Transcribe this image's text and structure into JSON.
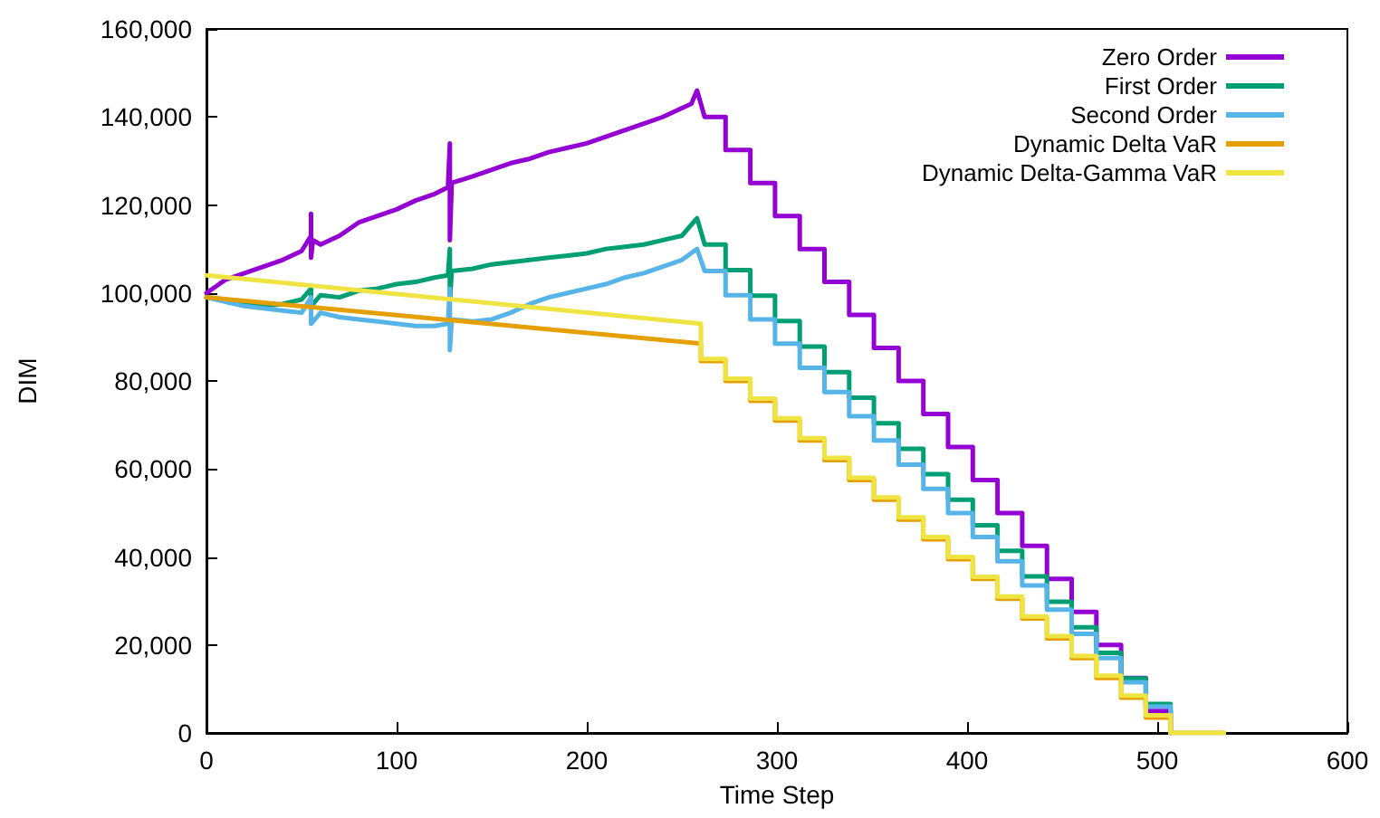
{
  "chart_data": {
    "type": "line",
    "xlabel": "Time Step",
    "ylabel": "DIM",
    "xlim": [
      0,
      600
    ],
    "xticks": [
      0,
      100,
      200,
      300,
      400,
      500,
      600
    ],
    "ylim": [
      0,
      160000
    ],
    "yticks": [
      {
        "value": 0,
        "label": "0"
      },
      {
        "value": 20000,
        "label": "20,000"
      },
      {
        "value": 40000,
        "label": "40,000"
      },
      {
        "value": 60000,
        "label": "60,000"
      },
      {
        "value": 80000,
        "label": "80,000"
      },
      {
        "value": 100000,
        "label": "100,000"
      },
      {
        "value": 120000,
        "label": "120,000"
      },
      {
        "value": 140000,
        "label": "140,000"
      },
      {
        "value": 160000,
        "label": "160,000"
      }
    ],
    "grid": false,
    "legend": "top right",
    "marker": "none",
    "line_style": "solid",
    "series": [
      {
        "name": "Zero Order",
        "color": "#9400d3",
        "x": [
          0,
          5,
          10,
          20,
          30,
          40,
          50,
          55,
          55,
          55,
          56,
          60,
          70,
          80,
          90,
          100,
          110,
          120,
          127,
          128,
          128,
          129,
          140,
          150,
          160,
          170,
          180,
          190,
          200,
          210,
          220,
          230,
          240,
          250,
          255,
          258,
          262,
          273,
          273,
          286,
          286,
          299,
          299,
          312,
          312,
          325,
          325,
          338,
          338,
          351,
          351,
          364,
          364,
          377,
          377,
          390,
          390,
          403,
          403,
          416,
          416,
          429,
          429,
          442,
          442,
          455,
          455,
          468,
          468,
          481,
          481,
          494,
          494,
          507,
          507
        ],
        "values": [
          100000,
          101500,
          103000,
          104500,
          106000,
          107500,
          109500,
          113000,
          118000,
          108000,
          112000,
          111000,
          113000,
          116000,
          117500,
          119000,
          121000,
          122500,
          124000,
          134000,
          112000,
          125000,
          126500,
          128000,
          129500,
          130500,
          132000,
          133000,
          134000,
          135500,
          137000,
          138500,
          140000,
          142000,
          143000,
          146000,
          140000,
          140000,
          132500,
          132500,
          125000,
          125000,
          117500,
          117500,
          110000,
          110000,
          102500,
          102500,
          95000,
          95000,
          87500,
          87500,
          80000,
          80000,
          72500,
          72500,
          65000,
          65000,
          57500,
          57500,
          50000,
          50000,
          42500,
          42500,
          35000,
          35000,
          27500,
          27500,
          20000,
          20000,
          12500,
          12500,
          5000,
          5000,
          0
        ]
      },
      {
        "name": "First Order",
        "color": "#009e73",
        "x": [
          0,
          10,
          20,
          30,
          40,
          50,
          55,
          55,
          60,
          70,
          80,
          90,
          100,
          110,
          120,
          127,
          128,
          128,
          129,
          140,
          150,
          160,
          170,
          180,
          190,
          200,
          210,
          220,
          230,
          240,
          250,
          258,
          262,
          273,
          273,
          286,
          286,
          299,
          299,
          312,
          312,
          325,
          325,
          338,
          338,
          351,
          351,
          364,
          364,
          377,
          377,
          390,
          390,
          403,
          403,
          416,
          416,
          429,
          429,
          442,
          442,
          455,
          455,
          468,
          468,
          481,
          481,
          494,
          494,
          507,
          507
        ],
        "values": [
          99000,
          98500,
          97500,
          97000,
          97500,
          98500,
          101000,
          97000,
          99500,
          99000,
          100500,
          101000,
          102000,
          102500,
          103500,
          104000,
          110000,
          98000,
          105000,
          105500,
          106500,
          107000,
          107500,
          108000,
          108500,
          109000,
          110000,
          110500,
          111000,
          112000,
          113000,
          117000,
          111000,
          111000,
          105200,
          105200,
          99400,
          99400,
          93600,
          93600,
          87800,
          87800,
          82000,
          82000,
          76200,
          76200,
          70400,
          70400,
          64600,
          64600,
          58800,
          58800,
          53000,
          53000,
          47200,
          47200,
          41400,
          41400,
          35600,
          35600,
          29800,
          29800,
          24000,
          24000,
          18200,
          18200,
          12400,
          12400,
          6600,
          6600,
          0
        ]
      },
      {
        "name": "Second Order",
        "color": "#56b4e9",
        "x": [
          0,
          10,
          20,
          30,
          40,
          50,
          55,
          55,
          60,
          70,
          80,
          90,
          100,
          110,
          120,
          127,
          128,
          128,
          129,
          140,
          150,
          160,
          170,
          180,
          190,
          200,
          210,
          220,
          230,
          240,
          250,
          258,
          262,
          273,
          273,
          286,
          286,
          299,
          299,
          312,
          312,
          325,
          325,
          338,
          338,
          351,
          351,
          364,
          364,
          377,
          377,
          390,
          390,
          403,
          403,
          416,
          416,
          429,
          429,
          442,
          442,
          455,
          455,
          468,
          468,
          481,
          481,
          494,
          494,
          507,
          507
        ],
        "values": [
          99000,
          98000,
          97000,
          96500,
          96000,
          95500,
          99000,
          93000,
          95500,
          94500,
          94000,
          93500,
          93000,
          92500,
          92500,
          93000,
          101000,
          87000,
          94000,
          93500,
          94000,
          95500,
          97500,
          99000,
          100000,
          101000,
          102000,
          103500,
          104500,
          106000,
          107500,
          110000,
          105000,
          105000,
          99500,
          99500,
          94000,
          94000,
          88500,
          88500,
          83000,
          83000,
          77500,
          77500,
          72000,
          72000,
          66500,
          66500,
          61000,
          61000,
          55500,
          55500,
          50000,
          50000,
          44500,
          44500,
          39000,
          39000,
          33500,
          33500,
          28000,
          28000,
          22500,
          22500,
          17000,
          17000,
          11500,
          11500,
          6000,
          6000,
          0
        ]
      },
      {
        "name": "Dynamic Delta VaR",
        "color": "#e69f00",
        "x": [
          0,
          260,
          260,
          273,
          273,
          286,
          286,
          299,
          299,
          312,
          312,
          325,
          325,
          338,
          338,
          351,
          351,
          364,
          364,
          377,
          377,
          390,
          390,
          403,
          403,
          416,
          416,
          429,
          429,
          442,
          442,
          455,
          455,
          468,
          468,
          481,
          481,
          494,
          494,
          507,
          507,
          535
        ],
        "values": [
          99000,
          88500,
          84500,
          84500,
          80000,
          80000,
          75500,
          75500,
          71000,
          71000,
          66500,
          66500,
          62000,
          62000,
          57500,
          57500,
          53000,
          53000,
          48500,
          48500,
          44000,
          44000,
          39500,
          39500,
          35000,
          35000,
          30500,
          30500,
          26000,
          26000,
          21500,
          21500,
          17000,
          17000,
          12500,
          12500,
          8000,
          8000,
          3500,
          3500,
          0,
          0
        ]
      },
      {
        "name": "Dynamic Delta-Gamma VaR",
        "color": "#f0e442",
        "x": [
          0,
          260,
          260,
          273,
          273,
          286,
          286,
          299,
          299,
          312,
          312,
          325,
          325,
          338,
          338,
          351,
          351,
          364,
          364,
          377,
          377,
          390,
          390,
          403,
          403,
          416,
          416,
          429,
          429,
          442,
          442,
          455,
          455,
          468,
          468,
          481,
          481,
          494,
          494,
          507,
          507,
          535
        ],
        "values": [
          104000,
          93000,
          85000,
          85000,
          80500,
          80500,
          76000,
          76000,
          71500,
          71500,
          67000,
          67000,
          62500,
          62500,
          58000,
          58000,
          53500,
          53500,
          49000,
          49000,
          44500,
          44500,
          40000,
          40000,
          35500,
          35500,
          31000,
          31000,
          26500,
          26500,
          22000,
          22000,
          17500,
          17500,
          13000,
          13000,
          8500,
          8500,
          4000,
          4000,
          0,
          0
        ]
      }
    ]
  }
}
